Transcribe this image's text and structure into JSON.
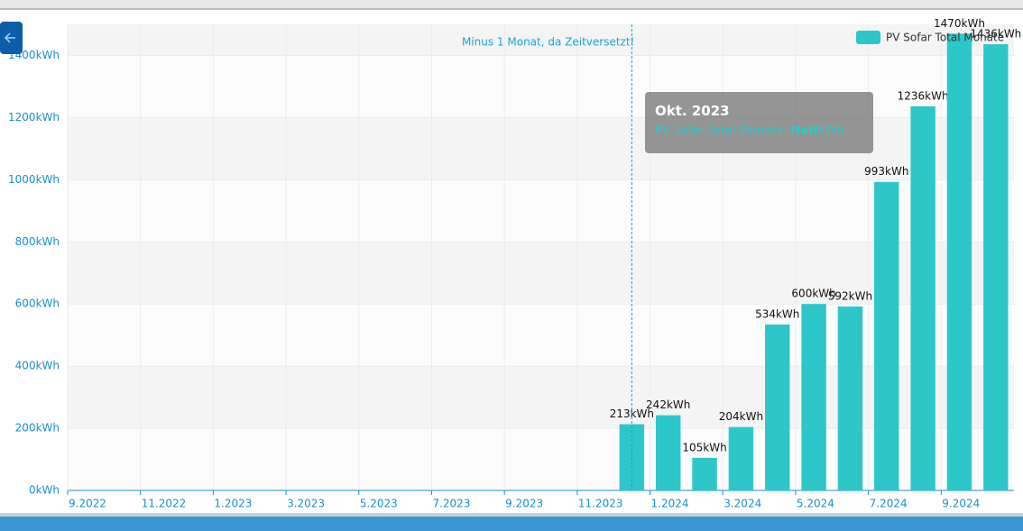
{
  "chart_data": {
    "type": "bar",
    "categories": [
      "9.2022",
      null,
      "11.2022",
      null,
      "1.2023",
      null,
      "3.2023",
      null,
      "5.2023",
      null,
      "7.2023",
      null,
      "9.2023",
      null,
      "11.2023",
      null,
      "1.2024",
      null,
      "3.2024",
      null,
      "5.2024",
      null,
      "7.2024",
      null,
      "9.2024",
      null
    ],
    "series": [
      {
        "name": "PV Sofar Total Monate",
        "color": "#2ec7c9",
        "values": [
          null,
          null,
          null,
          null,
          null,
          null,
          null,
          null,
          null,
          null,
          null,
          null,
          null,
          null,
          null,
          213,
          242,
          105,
          204,
          534,
          600,
          592,
          993,
          1236,
          1470,
          1436
        ],
        "value_labels": [
          null,
          null,
          null,
          null,
          null,
          null,
          null,
          null,
          null,
          null,
          null,
          null,
          null,
          null,
          null,
          "213kWh",
          "242kWh",
          "105kWh",
          "204kWh",
          "534kWh",
          "600kWh",
          "592kWh",
          "993kWh",
          "1236kWh",
          "1470kWh",
          "1436kWh"
        ]
      }
    ],
    "ylim": [
      0,
      1500
    ],
    "yticks": [
      {
        "value": 0,
        "label": "0kWh"
      },
      {
        "value": 200,
        "label": "200kWh"
      },
      {
        "value": 400,
        "label": "400kWh"
      },
      {
        "value": 600,
        "label": "600kWh"
      },
      {
        "value": 800,
        "label": "800kWh"
      },
      {
        "value": 1000,
        "label": "1000kWh"
      },
      {
        "value": 1200,
        "label": "1200kWh"
      },
      {
        "value": 1400,
        "label": "1400kWh"
      }
    ],
    "grid": true,
    "legend": "top-right",
    "annotation": "Minus 1 Monat, da Zeitversetzt!",
    "tooltip": {
      "title": "Okt. 2023",
      "series": "PV Sofar Total Monate:",
      "value": "NaN",
      "unit": "kWh"
    }
  }
}
